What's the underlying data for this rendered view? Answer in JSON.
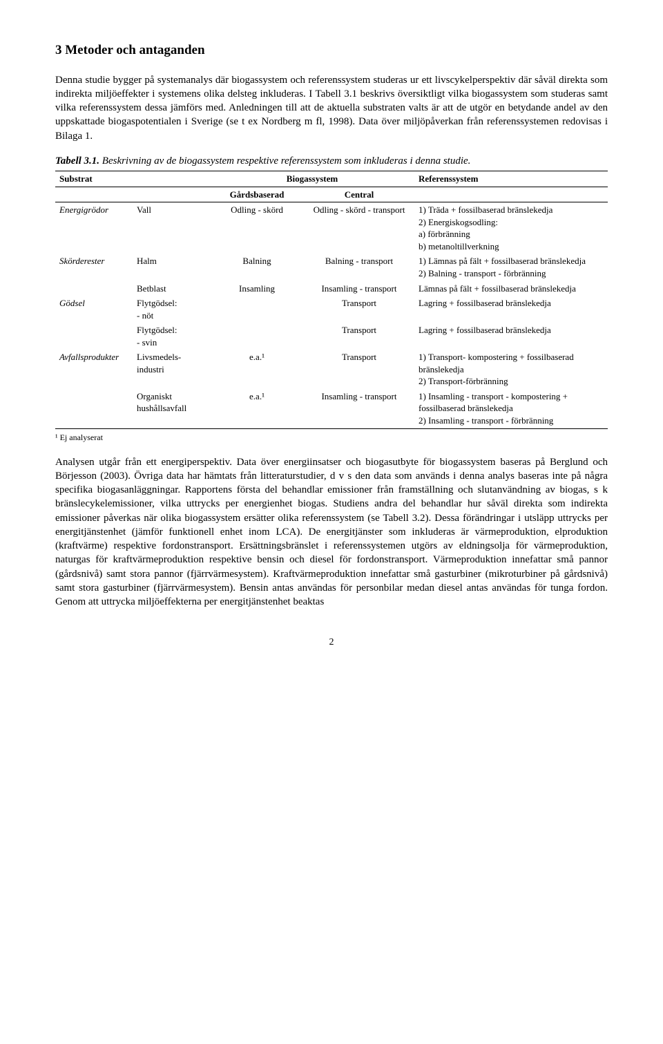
{
  "heading": "3   Metoder och antaganden",
  "para1": "Denna studie bygger på systemanalys där biogassystem och referenssystem studeras ur ett livscykelperspektiv där såväl direkta som indirekta miljöeffekter i systemens olika delsteg inkluderas. I Tabell 3.1 beskrivs översiktligt vilka biogassystem som studeras samt vilka referenssystem dessa jämförs med. Anledningen till att de aktuella substraten valts är att de utgör en betydande andel av den uppskattade biogaspotentialen i Sverige (se t ex Nordberg m fl, 1998). Data över miljöpåverkan från referenssystemen redovisas i Bilaga 1.",
  "table_caption_label": "Tabell 3.1.",
  "table_caption_text": " Beskrivning av de biogassystem respektive referenssystem som inkluderas i denna studie.",
  "headers": {
    "substrat": "Substrat",
    "biogassystem": "Biogassystem",
    "referenssystem": "Referenssystem",
    "gardsbaserad": "Gårdsbaserad",
    "central": "Central"
  },
  "rows": [
    {
      "group": "Energigrödor",
      "sub": "Vall",
      "gard": "Odling - skörd",
      "central": "Odling - skörd - transport",
      "ref": "1) Träda + fossilbaserad bränslekedja\n2) Energiskogsodling:\n     a) förbränning\n     b) metanoltillverkning"
    },
    {
      "group": "Skörderester",
      "sub": "Halm",
      "gard": "Balning",
      "central": "Balning - transport",
      "ref": "1) Lämnas på fält + fossilbaserad bränslekedja\n2) Balning - transport - förbränning"
    },
    {
      "group": "",
      "sub": "Betblast",
      "gard": "Insamling",
      "central": "Insamling - transport",
      "ref": "Lämnas på fält + fossilbaserad bränslekedja"
    },
    {
      "group": "Gödsel",
      "sub": "Flytgödsel:\n- nöt",
      "gard": "",
      "central": "Transport",
      "ref": "Lagring + fossilbaserad bränslekedja"
    },
    {
      "group": "",
      "sub": "Flytgödsel:\n- svin",
      "gard": "",
      "central": "Transport",
      "ref": "Lagring + fossilbaserad bränslekedja"
    },
    {
      "group": "Avfallsprodukter",
      "sub": "Livsmedels-\nindustri",
      "gard": "e.a.¹",
      "central": "Transport",
      "ref": "1) Transport- kompostering + fossilbaserad bränslekedja\n2) Transport-förbränning"
    },
    {
      "group": "",
      "sub": "Organiskt hushållsavfall",
      "gard": "e.a.¹",
      "central": "Insamling - transport",
      "ref": "1) Insamling - transport - kompostering + fossilbaserad bränslekedja\n2) Insamling - transport - förbränning"
    }
  ],
  "footnote": "¹   Ej analyserat",
  "para2": "Analysen utgår från ett energiperspektiv. Data över energiinsatser och biogasutbyte för biogassystem baseras på Berglund och Börjesson (2003). Övriga data har hämtats från litteraturstudier, d v s den data som används i denna analys baseras inte på några specifika biogasanläggningar. Rapportens första del behandlar emissioner från framställning och slutanvändning av biogas, s k bränslecykelemissioner, vilka uttrycks per energienhet biogas. Studiens andra del behandlar hur såväl direkta som indirekta emissioner påverkas när olika biogassystem ersätter olika referenssystem (se Tabell 3.2). Dessa förändringar i utsläpp uttrycks per energitjänstenhet (jämför funktionell enhet inom LCA). De energitjänster som inkluderas är värmeproduktion, elproduktion (kraftvärme) respektive fordonstransport. Ersättningsbränslet i referenssystemen utgörs av eldningsolja för värmeproduktion, naturgas för kraftvärmeproduktion respektive bensin och diesel för fordonstransport. Värmeproduktion innefattar små pannor (gårdsnivå) samt stora pannor (fjärrvärmesystem). Kraftvärmeproduktion innefattar små gasturbiner (mikroturbiner på gårdsnivå) samt stora gasturbiner (fjärrvärmesystem). Bensin antas användas för personbilar medan diesel antas användas för tunga fordon. Genom att uttrycka miljöeffekterna per energitjänstenhet beaktas",
  "page_number": "2"
}
